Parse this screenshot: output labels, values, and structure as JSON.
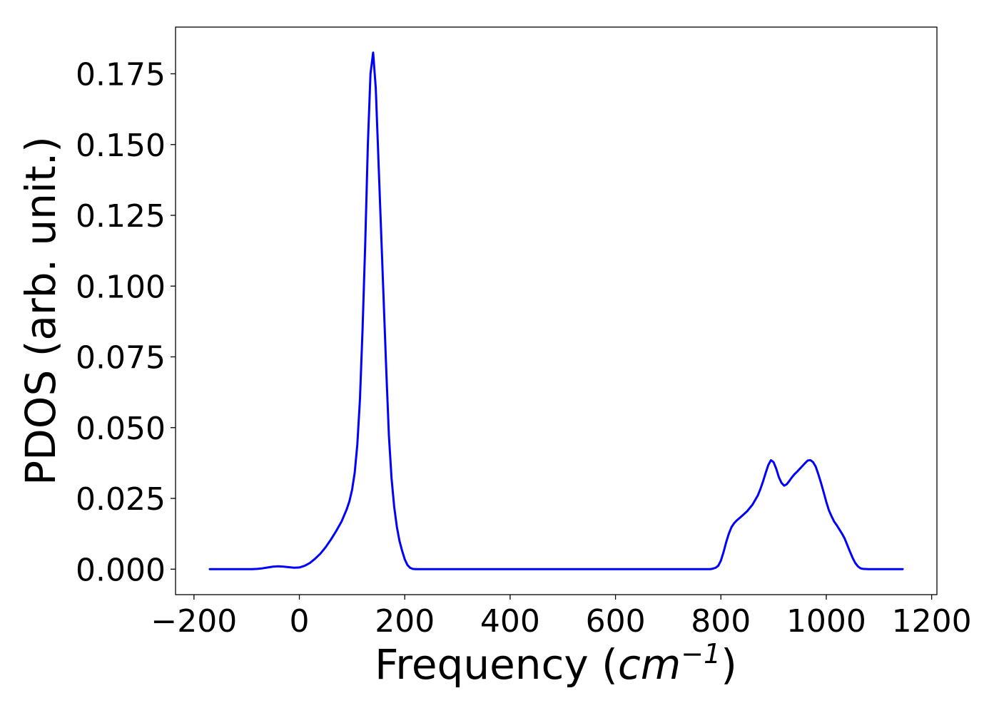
{
  "chart_data": {
    "type": "line",
    "title": "",
    "xlabel": "Frequency (",
    "xlabel_math": "cm",
    "xlabel_sup": "−1",
    "xlabel_close": ")",
    "ylabel": "PDOS (arb. unit.)",
    "xlim": [
      -235,
      1210
    ],
    "ylim": [
      -0.009,
      0.1915
    ],
    "xticks": [
      -200,
      0,
      200,
      400,
      600,
      800,
      1000,
      1200
    ],
    "xtick_labels": [
      "−200",
      "0",
      "200",
      "400",
      "600",
      "800",
      "1000",
      "1200"
    ],
    "yticks": [
      0.0,
      0.025,
      0.05,
      0.075,
      0.1,
      0.125,
      0.15,
      0.175
    ],
    "ytick_labels": [
      "0.000",
      "0.025",
      "0.050",
      "0.075",
      "0.100",
      "0.125",
      "0.150",
      "0.175"
    ],
    "grid": false,
    "colors": {
      "line": "#0000ff",
      "axes": "#000000"
    },
    "series": [
      {
        "x": [
          -170,
          -90,
          -80,
          -70,
          -60,
          -50,
          -40,
          -30,
          -20,
          -10,
          0,
          10,
          20,
          30,
          40,
          50,
          60,
          70,
          80,
          90,
          95,
          100,
          105,
          110,
          115,
          120,
          125,
          130,
          135,
          140,
          145,
          150,
          155,
          160,
          165,
          170,
          175,
          180,
          185,
          190,
          195,
          200,
          205,
          210,
          215,
          220,
          225,
          230,
          235,
          240,
          245,
          250,
          255,
          260,
          265,
          270,
          300,
          500,
          700,
          780,
          785,
          790,
          795,
          800,
          805,
          810,
          815,
          820,
          825,
          830,
          835,
          840,
          850,
          860,
          870,
          875,
          880,
          885,
          890,
          895,
          900,
          905,
          910,
          915,
          920,
          925,
          930,
          935,
          940,
          945,
          950,
          955,
          960,
          965,
          970,
          975,
          980,
          985,
          990,
          995,
          1000,
          1005,
          1010,
          1015,
          1020,
          1025,
          1030,
          1035,
          1040,
          1045,
          1050,
          1055,
          1060,
          1065,
          1070,
          1080,
          1100,
          1145
        ],
        "y": [
          0.0,
          0.0,
          0.0001,
          0.0003,
          0.0006,
          0.0009,
          0.001,
          0.0009,
          0.0007,
          0.0005,
          0.0006,
          0.0012,
          0.0022,
          0.0037,
          0.0055,
          0.0078,
          0.0105,
          0.0135,
          0.0168,
          0.0212,
          0.024,
          0.028,
          0.034,
          0.044,
          0.06,
          0.085,
          0.115,
          0.15,
          0.175,
          0.1825,
          0.17,
          0.145,
          0.12,
          0.095,
          0.07,
          0.047,
          0.032,
          0.022,
          0.015,
          0.01,
          0.0065,
          0.0035,
          0.0015,
          0.0005,
          0.0001,
          0.0,
          0.0,
          0.0,
          0.0,
          0.0,
          0.0,
          0.0,
          0.0,
          0.0,
          0.0,
          0.0,
          0.0,
          0.0,
          0.0,
          0.0,
          0.0002,
          0.0005,
          0.0012,
          0.003,
          0.006,
          0.0095,
          0.0125,
          0.0148,
          0.0162,
          0.0172,
          0.018,
          0.0188,
          0.0205,
          0.0228,
          0.026,
          0.0283,
          0.031,
          0.034,
          0.0368,
          0.0385,
          0.0378,
          0.0355,
          0.0325,
          0.0305,
          0.0295,
          0.03,
          0.0312,
          0.0325,
          0.0336,
          0.0345,
          0.0355,
          0.0365,
          0.0375,
          0.0384,
          0.0385,
          0.0378,
          0.0362,
          0.0335,
          0.0305,
          0.0272,
          0.0238,
          0.0208,
          0.0187,
          0.0168,
          0.0155,
          0.014,
          0.0125,
          0.0108,
          0.0085,
          0.0062,
          0.004,
          0.0022,
          0.001,
          0.0003,
          0.0001,
          0.0,
          0.0,
          0.0
        ]
      }
    ]
  }
}
